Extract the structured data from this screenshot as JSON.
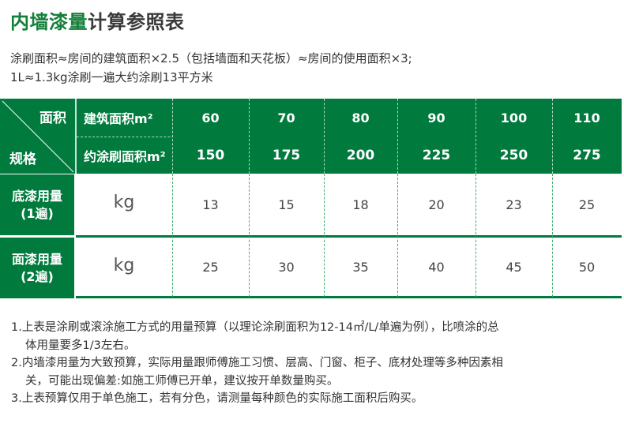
{
  "title": {
    "green": "内墙漆量",
    "rest": "计算参照表"
  },
  "intro": [
    "涂刷面积≈房间的建筑面积×2.5（包括墙面和天花板）≈房间的使用面积×3;",
    "1L≈1.3kg涂刷一遍大约涂刷13平方米"
  ],
  "table": {
    "corner_top": "面积",
    "corner_bottom": "规格",
    "row_building": "建筑面积m²",
    "row_paint": "约涂刷面积m²",
    "building": [
      "60",
      "70",
      "80",
      "90",
      "100",
      "110"
    ],
    "paint": [
      "150",
      "175",
      "200",
      "225",
      "250",
      "275"
    ],
    "primer": {
      "label1": "底漆用量",
      "label2": "(1遍)",
      "unit": "kg",
      "values": [
        "13",
        "15",
        "18",
        "20",
        "23",
        "25"
      ]
    },
    "finish": {
      "label1": "面漆用量",
      "label2": "(2遍)",
      "unit": "kg",
      "values": [
        "25",
        "30",
        "35",
        "40",
        "45",
        "50"
      ]
    }
  },
  "notes": [
    [
      "1.上表是涂刷或滚涂施工方式的用量预算（以理论涂刷面积为12-14㎡/L/单遍为例），比喷涂的总",
      "体用量要多1/3左右。"
    ],
    [
      "2.内墙漆用量为大致预算，实际用量跟师傅施工习惯、层高、门窗、柜子、底材处理等多种因素相",
      "关，可能出现偏差:如施工师傅已开单，建议按开单数量购买。"
    ],
    [
      "3.上表预算仅用于单色施工，若有分色，请测量每种颜色的实际施工面积后购买。"
    ]
  ],
  "colors": {
    "brand": "#007a3d",
    "text": "#333333"
  }
}
